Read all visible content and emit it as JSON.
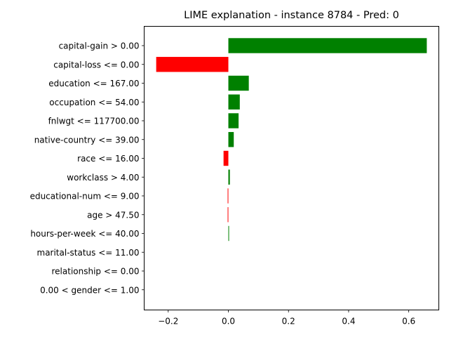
{
  "chart_data": {
    "type": "bar",
    "orientation": "horizontal",
    "title": "LIME explanation - instance 8784 - Pred: 0",
    "xlabel": "",
    "ylabel": "",
    "xlim": [
      -0.28,
      0.7
    ],
    "x_ticks": [
      -0.2,
      0.0,
      0.2,
      0.4,
      0.6
    ],
    "x_tick_labels": [
      "−0.2",
      "0.0",
      "0.2",
      "0.4",
      "0.6"
    ],
    "grid": false,
    "legend": "none",
    "colors": {
      "positive": "#008000",
      "negative": "#ff0000"
    },
    "categories": [
      "capital-gain > 0.00",
      "capital-loss <= 0.00",
      "education <= 167.00",
      "occupation <= 54.00",
      "fnlwgt <= 117700.00",
      "native-country <= 39.00",
      "race <= 16.00",
      "workclass > 4.00",
      "educational-num <= 9.00",
      "age > 47.50",
      "hours-per-week <= 40.00",
      "marital-status <= 11.00",
      "relationship <= 0.00",
      "0.00 < gender <= 1.00"
    ],
    "values": [
      0.66,
      -0.24,
      0.068,
      0.038,
      0.034,
      0.018,
      -0.016,
      0.005,
      -0.002,
      -0.002,
      0.002,
      0.0,
      0.0,
      0.0
    ]
  }
}
